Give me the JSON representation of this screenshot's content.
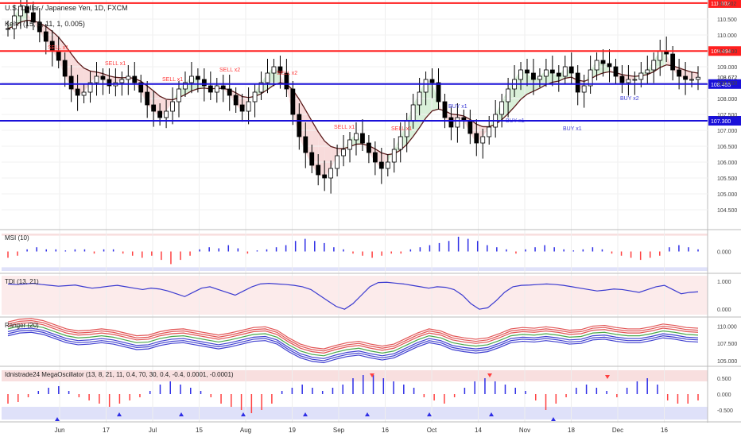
{
  "header": {
    "title": "U.S. Dollar / Japanese Yen, 1D, FXCM",
    "indicator": "Keltn (15, 8, 11, 1, 0.005)"
  },
  "colors": {
    "candle": "#000000",
    "hline_red": "#ff1f1f",
    "hline_blue": "#1a10d9",
    "sell": "#ff3b3b",
    "buy": "#3d3dd6",
    "keltner_mid": "#5a1a1a",
    "up_fill": "#cfeccf",
    "down_fill": "#f6d2d2",
    "bar_pos": "#2e2ee6",
    "bar_neg": "#ff4040",
    "upper_band": "#f3c9c9",
    "lower_band": "#c9cdf5"
  },
  "chart_data": [
    {
      "type": "candlestick",
      "pane": "price",
      "ylim": [
        103.9,
        111.1
      ],
      "ticks": [
        "104.500",
        "105.000",
        "105.500",
        "106.000",
        "106.500",
        "107.000",
        "107.500",
        "108.000",
        "108.500",
        "109.000",
        "109.500",
        "110.000",
        "110.500",
        "111.002"
      ],
      "x_ticks": [
        "Jun",
        "17",
        "Jul",
        "15",
        "Aug",
        "19",
        "Sep",
        "16",
        "Oct",
        "14",
        "Nov",
        "18",
        "Dec",
        "16"
      ],
      "last_price": "108.672",
      "levels": [
        {
          "label": "111.002",
          "value": 111.002,
          "style": "red"
        },
        {
          "label": "109.494",
          "value": 109.494,
          "style": "red"
        },
        {
          "label": "108.455",
          "value": 108.455,
          "style": "blue"
        },
        {
          "label": "107.300",
          "value": 107.3,
          "style": "blue"
        }
      ],
      "closes": [
        110.2,
        110.6,
        110.9,
        110.7,
        110.4,
        110.1,
        109.8,
        109.5,
        109.2,
        108.7,
        108.3,
        108.1,
        108.2,
        108.5,
        108.7,
        108.6,
        108.4,
        108.5,
        108.6,
        108.7,
        108.5,
        108.2,
        107.8,
        107.6,
        107.4,
        107.6,
        107.9,
        108.3,
        108.5,
        108.7,
        108.6,
        108.4,
        108.2,
        108.4,
        108.3,
        108.1,
        107.8,
        107.6,
        107.9,
        108.2,
        108.5,
        108.8,
        109.0,
        108.8,
        108.3,
        107.5,
        106.8,
        106.3,
        105.9,
        105.6,
        105.5,
        105.8,
        106.2,
        106.4,
        106.7,
        106.9,
        106.6,
        106.3,
        106.0,
        105.8,
        106.0,
        106.4,
        106.8,
        107.3,
        107.8,
        108.2,
        108.6,
        108.5,
        107.9,
        107.4,
        107.1,
        107.4,
        107.3,
        106.9,
        106.6,
        106.8,
        107.1,
        107.5,
        107.9,
        108.3,
        108.6,
        108.9,
        108.8,
        108.6,
        108.7,
        108.9,
        108.8,
        108.7,
        109.0,
        108.8,
        108.2,
        108.4,
        108.9,
        109.2,
        109.1,
        109.0,
        108.7,
        108.5,
        108.6,
        108.6,
        108.8,
        108.9,
        109.2,
        109.5,
        109.4,
        108.9,
        108.7,
        108.6,
        108.6,
        108.67
      ],
      "signals": [
        {
          "label": "SELL x1",
          "value": 109.55
        },
        {
          "label": "SELL x1",
          "value": 109.05
        },
        {
          "label": "SELL x1",
          "value": 108.55
        },
        {
          "label": "SELL x2",
          "value": 108.85
        },
        {
          "label": "SELL x2",
          "value": 108.75
        },
        {
          "label": "SELL x1",
          "value": 107.05
        },
        {
          "label": "SELL x1",
          "value": 107.0
        },
        {
          "label": "BUY x1",
          "value": 107.7
        },
        {
          "label": "BUY x1",
          "value": 107.25
        },
        {
          "label": "BUY x1",
          "value": 107.0
        },
        {
          "label": "BUY x2",
          "value": 107.95
        }
      ]
    },
    {
      "type": "bar",
      "pane": "MSI (10)",
      "ylim": [
        -1,
        1
      ],
      "ticks": [
        "0.000"
      ],
      "values": [
        -0.3,
        -0.2,
        0.1,
        0.2,
        0.1,
        0.1,
        0.05,
        0.1,
        0.1,
        -0.1,
        0.1,
        0.1,
        -0.1,
        -0.2,
        -0.3,
        -0.2,
        -0.4,
        -0.6,
        -0.4,
        -0.2,
        0.1,
        0.2,
        0.15,
        0.3,
        0.15,
        -0.1,
        0.05,
        0.1,
        0.2,
        0.3,
        0.5,
        0.6,
        0.5,
        0.4,
        0.2,
        0.1,
        -0.1,
        -0.2,
        -0.3,
        -0.2,
        -0.1,
        -0.1,
        0.1,
        0.2,
        0.3,
        0.4,
        0.5,
        0.7,
        0.6,
        0.5,
        0.3,
        0.2,
        0.1,
        -0.1,
        0.1,
        0.2,
        0.3,
        0.2,
        0.1,
        0.05,
        0.1,
        0.2,
        0.1,
        -0.1,
        -0.2,
        -0.3,
        -0.4,
        -0.3,
        -0.2,
        0.2,
        0.3,
        0.2,
        0.1
      ]
    },
    {
      "type": "line",
      "pane": "TDI (13, 21)",
      "ylim": [
        -0.25,
        1.25
      ],
      "ticks": [
        "1.000",
        "0.000"
      ],
      "values": [
        0.9,
        0.88,
        0.9,
        0.92,
        0.88,
        0.85,
        0.82,
        0.84,
        0.86,
        0.8,
        0.75,
        0.78,
        0.82,
        0.85,
        0.8,
        0.75,
        0.7,
        0.75,
        0.72,
        0.65,
        0.55,
        0.45,
        0.6,
        0.75,
        0.8,
        0.7,
        0.6,
        0.5,
        0.65,
        0.8,
        0.9,
        0.92,
        0.9,
        0.88,
        0.85,
        0.8,
        0.7,
        0.5,
        0.3,
        0.1,
        0.0,
        0.2,
        0.5,
        0.8,
        0.95,
        0.96,
        0.93,
        0.9,
        0.85,
        0.8,
        0.75,
        0.8,
        0.78,
        0.7,
        0.5,
        0.2,
        0.0,
        0.05,
        0.3,
        0.6,
        0.8,
        0.85,
        0.86,
        0.88,
        0.9,
        0.88,
        0.85,
        0.8,
        0.75,
        0.7,
        0.65,
        0.68,
        0.72,
        0.7,
        0.65,
        0.6,
        0.7,
        0.8,
        0.85,
        0.7,
        0.55,
        0.6,
        0.62
      ]
    },
    {
      "type": "line",
      "pane": "Ranger (20)",
      "ylim": [
        104.3,
        111.2
      ],
      "ticks": [
        "110.000",
        "107.500",
        "105.000"
      ],
      "values": [
        109.6,
        110.0,
        110.1,
        109.8,
        109.2,
        108.6,
        108.3,
        108.4,
        108.6,
        108.4,
        108.0,
        107.6,
        107.7,
        108.2,
        108.5,
        108.6,
        108.3,
        108.0,
        107.7,
        108.0,
        108.4,
        108.8,
        108.9,
        108.4,
        107.3,
        106.4,
        105.9,
        105.7,
        106.2,
        106.6,
        106.8,
        106.4,
        106.1,
        106.4,
        107.2,
        108.0,
        108.6,
        108.3,
        107.6,
        107.3,
        107.1,
        107.3,
        107.9,
        108.6,
        108.8,
        108.7,
        108.9,
        108.7,
        108.4,
        108.5,
        109.0,
        109.1,
        108.8,
        108.6,
        108.6,
        108.9,
        109.3,
        109.1,
        108.8,
        108.7
      ]
    },
    {
      "type": "bar",
      "pane": "Idnistrade24 MegaOscillator (13, 8, 21, 11, 0.4, 70, 30, 0.4, -0.4, 0.0001, -0.0001)",
      "ylim": [
        -0.85,
        0.85
      ],
      "ticks": [
        "0.500",
        "0.000",
        "-0.500"
      ],
      "values": [
        -0.3,
        -0.25,
        -0.1,
        0.1,
        0.2,
        0.25,
        0.1,
        -0.1,
        -0.2,
        -0.3,
        -0.4,
        -0.3,
        -0.2,
        -0.1,
        0.1,
        0.3,
        0.4,
        0.3,
        0.2,
        0.1,
        -0.1,
        -0.3,
        -0.4,
        -0.5,
        -0.6,
        -0.5,
        -0.3,
        0.1,
        0.2,
        0.3,
        0.2,
        0.1,
        0.2,
        0.3,
        0.5,
        0.6,
        0.6,
        0.5,
        0.4,
        0.3,
        0.2,
        -0.1,
        -0.2,
        -0.3,
        -0.1,
        0.2,
        0.4,
        0.5,
        0.4,
        0.3,
        0.2,
        0.1,
        -0.2,
        -0.5,
        -0.3,
        -0.1,
        0.2,
        0.3,
        0.2,
        0.1,
        -0.1,
        0.2,
        0.4,
        0.5,
        0.3,
        -0.2,
        -0.3,
        -0.3,
        -0.2
      ],
      "markers_up": [
        0.55,
        0.55,
        0.5
      ],
      "markers_down": [
        -0.75,
        -0.6,
        -0.6,
        -0.6,
        -0.6,
        -0.6,
        -0.6,
        -0.6,
        -0.75
      ]
    }
  ]
}
